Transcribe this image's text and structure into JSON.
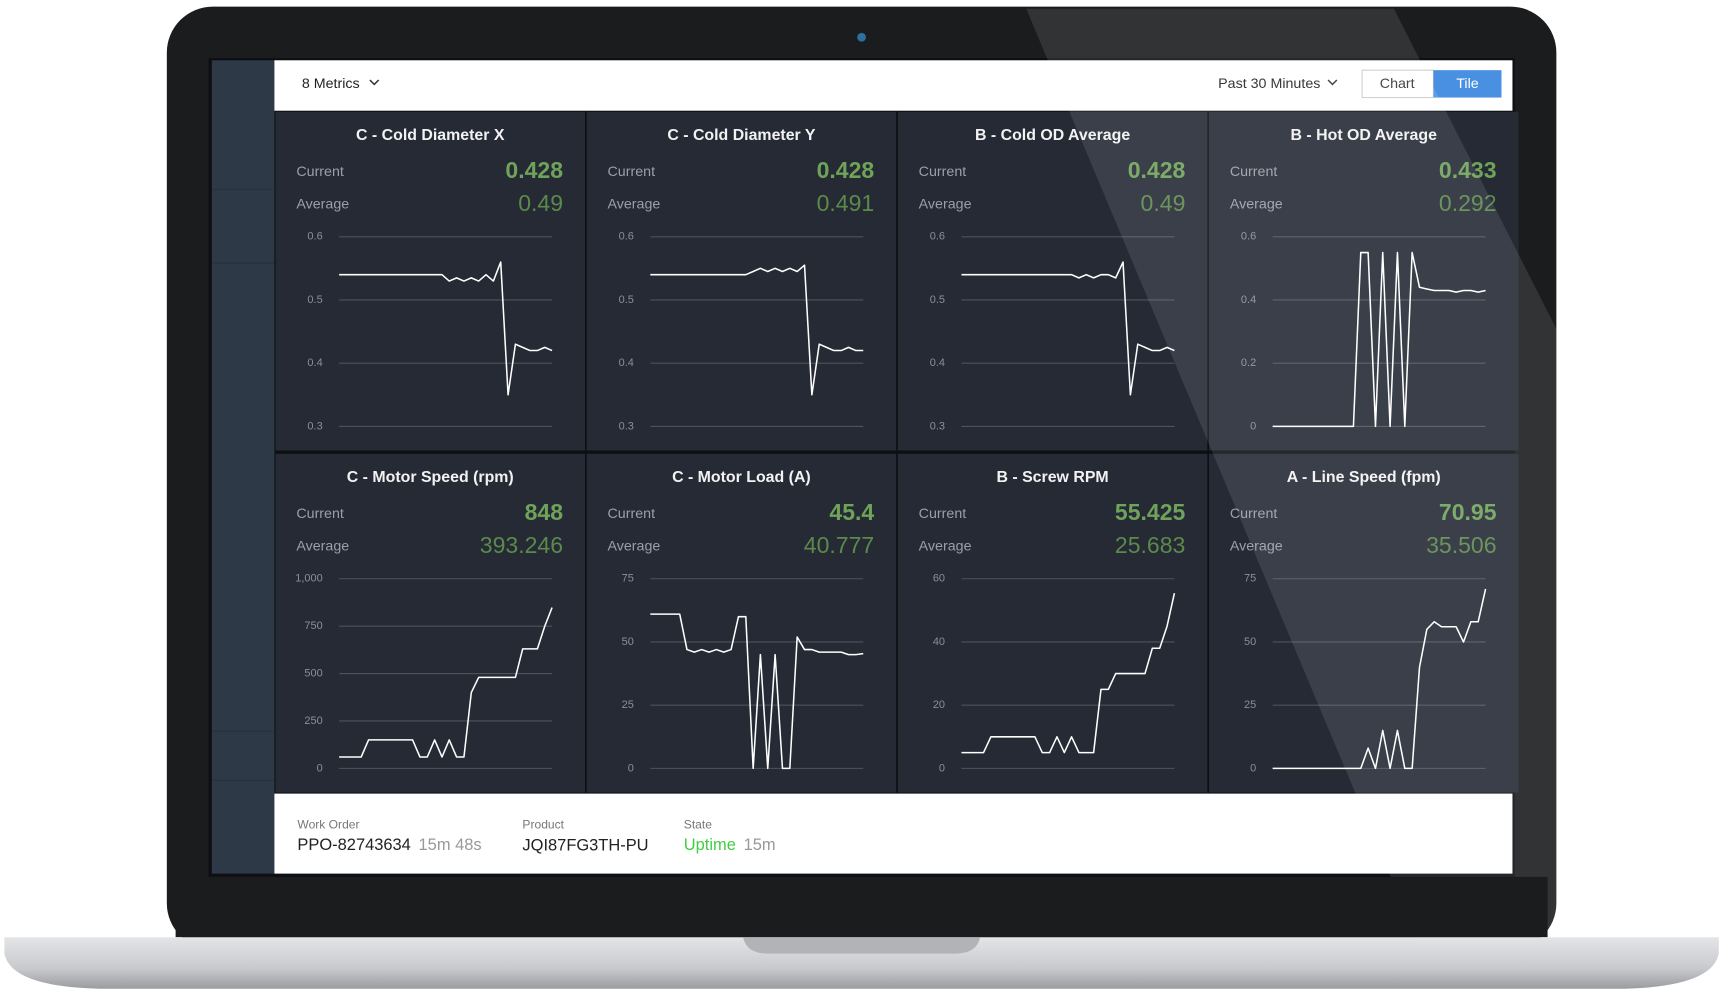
{
  "toolbar": {
    "metrics": "8 Metrics",
    "range": "Past 30 Minutes",
    "buttons": [
      "Chart",
      "Tile"
    ]
  },
  "chart_data": [
    {
      "type": "line",
      "title": "C - Cold Diameter X",
      "stats": [
        {
          "label": "Current",
          "value": 0.428
        },
        {
          "label": "Average",
          "value": 0.49
        }
      ],
      "color": "#ffffff",
      "grid": true,
      "values": [
        0.54,
        0.54,
        0.54,
        0.54,
        0.54,
        0.54,
        0.54,
        0.54,
        0.54,
        0.54,
        0.54,
        0.54,
        0.54,
        0.54,
        0.54,
        0.53,
        0.535,
        0.53,
        0.535,
        0.53,
        0.54,
        0.53,
        0.56,
        0.35,
        0.43,
        0.425,
        0.42,
        0.42,
        0.425,
        0.42
      ],
      "ylim": [
        0.3,
        0.6
      ],
      "yticks": [
        0.3,
        0.4,
        0.5,
        0.6
      ]
    },
    {
      "type": "line",
      "title": "C - Cold Diameter Y",
      "stats": [
        {
          "label": "Current",
          "value": 0.428
        },
        {
          "label": "Average",
          "value": 0.491
        }
      ],
      "color": "#ffffff",
      "grid": true,
      "values": [
        0.54,
        0.54,
        0.54,
        0.54,
        0.54,
        0.54,
        0.54,
        0.54,
        0.54,
        0.54,
        0.54,
        0.54,
        0.54,
        0.54,
        0.545,
        0.55,
        0.545,
        0.55,
        0.545,
        0.55,
        0.545,
        0.555,
        0.35,
        0.43,
        0.425,
        0.42,
        0.42,
        0.425,
        0.42,
        0.42
      ],
      "ylim": [
        0.3,
        0.6
      ],
      "yticks": [
        0.3,
        0.4,
        0.5,
        0.6
      ]
    },
    {
      "type": "line",
      "title": "B - Cold OD Average",
      "stats": [
        {
          "label": "Current",
          "value": 0.428
        },
        {
          "label": "Average",
          "value": 0.49
        }
      ],
      "color": "#ffffff",
      "grid": true,
      "values": [
        0.54,
        0.54,
        0.54,
        0.54,
        0.54,
        0.54,
        0.54,
        0.54,
        0.54,
        0.54,
        0.54,
        0.54,
        0.54,
        0.54,
        0.54,
        0.54,
        0.535,
        0.54,
        0.535,
        0.54,
        0.54,
        0.535,
        0.56,
        0.35,
        0.43,
        0.425,
        0.42,
        0.42,
        0.425,
        0.42
      ],
      "ylim": [
        0.3,
        0.6
      ],
      "yticks": [
        0.3,
        0.4,
        0.5,
        0.6
      ]
    },
    {
      "type": "line",
      "title": "B - Hot OD Average",
      "stats": [
        {
          "label": "Current",
          "value": 0.433
        },
        {
          "label": "Average",
          "value": 0.292
        }
      ],
      "color": "#ffffff",
      "grid": true,
      "values": [
        0,
        0,
        0,
        0,
        0,
        0,
        0,
        0,
        0,
        0,
        0,
        0,
        0.55,
        0.55,
        0,
        0.55,
        0,
        0.55,
        0,
        0.55,
        0.44,
        0.435,
        0.43,
        0.43,
        0.43,
        0.425,
        0.43,
        0.43,
        0.425,
        0.43
      ],
      "ylim": [
        0,
        0.6
      ],
      "yticks": [
        0,
        0.2,
        0.4,
        0.6
      ]
    },
    {
      "type": "line",
      "title": "C - Motor Speed (rpm)",
      "stats": [
        {
          "label": "Current",
          "value": 848
        },
        {
          "label": "Average",
          "value": 393.246
        }
      ],
      "color": "#ffffff",
      "grid": true,
      "values": [
        60,
        60,
        60,
        60,
        150,
        150,
        150,
        150,
        150,
        150,
        150,
        60,
        60,
        150,
        60,
        150,
        60,
        60,
        400,
        480,
        480,
        480,
        480,
        480,
        480,
        630,
        630,
        630,
        750,
        848
      ],
      "ylim": [
        0,
        1000
      ],
      "yticks": [
        0,
        250,
        500,
        750,
        {
          "value": 1000,
          "label": "1,000"
        }
      ]
    },
    {
      "type": "line",
      "title": "C - Motor Load (A)",
      "stats": [
        {
          "label": "Current",
          "value": 45.4
        },
        {
          "label": "Average",
          "value": 40.777
        }
      ],
      "color": "#ffffff",
      "grid": true,
      "values": [
        61,
        61,
        61,
        61,
        61,
        47,
        46,
        47,
        46,
        47,
        46,
        47,
        60,
        60,
        0,
        45,
        0,
        45,
        0,
        0,
        52,
        47,
        47,
        46,
        46,
        46,
        46,
        45,
        45,
        45.4
      ],
      "ylim": [
        0,
        75
      ],
      "yticks": [
        0,
        25,
        50,
        75
      ]
    },
    {
      "type": "line",
      "title": "B - Screw RPM",
      "stats": [
        {
          "label": "Current",
          "value": 55.425
        },
        {
          "label": "Average",
          "value": 25.683
        }
      ],
      "color": "#ffffff",
      "grid": true,
      "values": [
        5,
        5,
        5,
        5,
        10,
        10,
        10,
        10,
        10,
        10,
        10,
        5,
        5,
        10,
        5,
        10,
        5,
        5,
        5,
        25,
        25,
        30,
        30,
        30,
        30,
        30,
        38,
        38,
        45,
        55.425
      ],
      "ylim": [
        0,
        60
      ],
      "yticks": [
        0,
        20,
        40,
        60
      ]
    },
    {
      "type": "line",
      "title": "A - Line Speed (fpm)",
      "stats": [
        {
          "label": "Current",
          "value": 70.95
        },
        {
          "label": "Average",
          "value": 35.506
        }
      ],
      "color": "#ffffff",
      "grid": true,
      "values": [
        0,
        0,
        0,
        0,
        0,
        0,
        0,
        0,
        0,
        0,
        0,
        0,
        0,
        8,
        0,
        15,
        0,
        15,
        0,
        0,
        40,
        55,
        58,
        56,
        56,
        56,
        50,
        58,
        58,
        70.95
      ],
      "ylim": [
        0,
        75
      ],
      "yticks": [
        0,
        25,
        50,
        75
      ]
    }
  ],
  "footer": {
    "work_order": {
      "label": "Work Order",
      "value": "PPO-82743634",
      "age": "15m 48s"
    },
    "product": {
      "label": "Product",
      "value": "JQI87FG3TH-PU"
    },
    "state": {
      "label": "State",
      "value": "Uptime",
      "age": "15m"
    }
  }
}
